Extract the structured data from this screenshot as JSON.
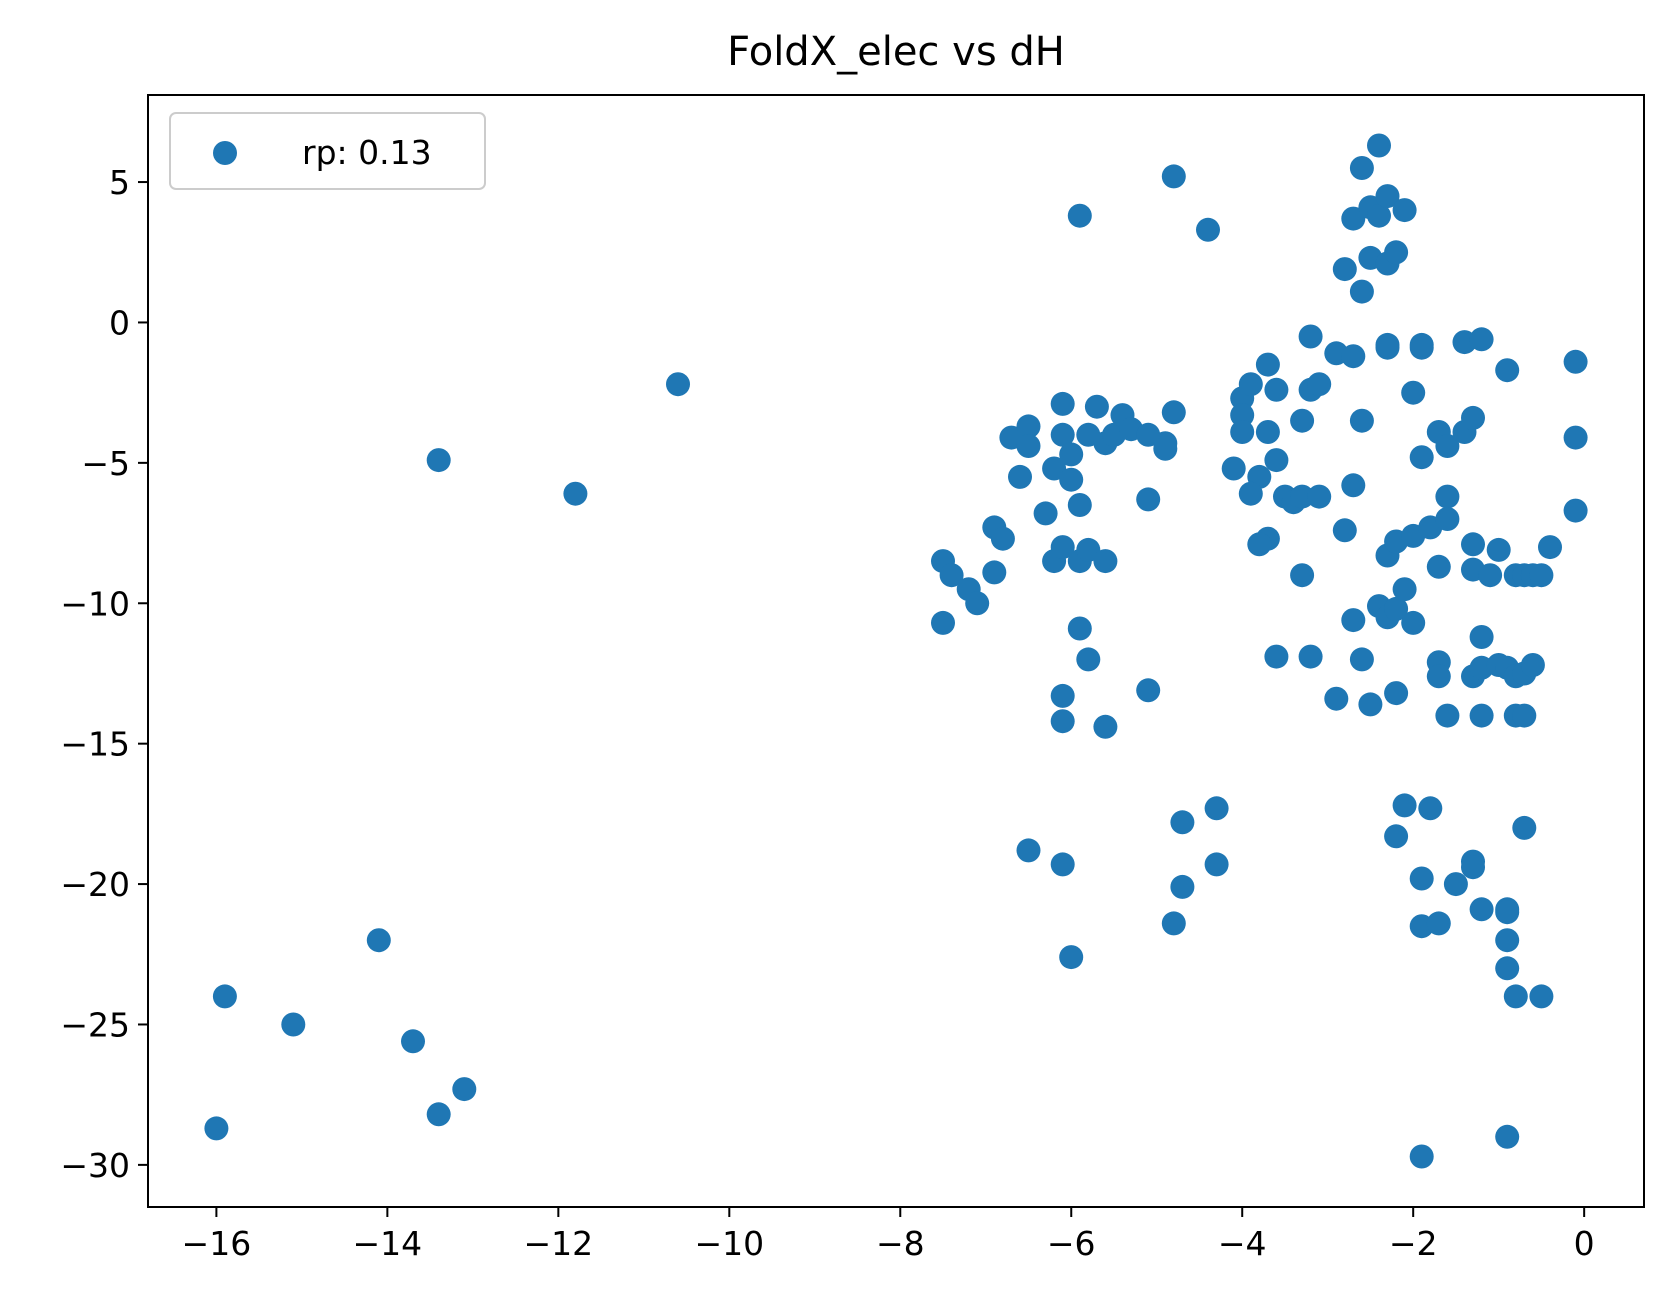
{
  "chart_data": {
    "type": "scatter",
    "title": "FoldX_elec vs dH",
    "xlabel": "",
    "ylabel": "",
    "xlim": [
      -16.8,
      0.7
    ],
    "ylim": [
      -31.5,
      8.1
    ],
    "xticks": [
      -16,
      -14,
      -12,
      -10,
      -8,
      -6,
      -4,
      -2,
      0
    ],
    "yticks": [
      5,
      0,
      -5,
      -10,
      -15,
      -20,
      -25,
      -30
    ],
    "grid": false,
    "legend": {
      "placement": "top-left"
    },
    "series": [
      {
        "name": "rp: 0.13",
        "color": "#1f77b4",
        "points": [
          [
            -16.0,
            -28.7
          ],
          [
            -15.9,
            -24.0
          ],
          [
            -15.1,
            -25.0
          ],
          [
            -14.1,
            -22.0
          ],
          [
            -13.7,
            -25.6
          ],
          [
            -13.4,
            -28.2
          ],
          [
            -13.1,
            -27.3
          ],
          [
            -13.4,
            -4.9
          ],
          [
            -11.8,
            -6.1
          ],
          [
            -10.6,
            -2.2
          ],
          [
            -7.5,
            -8.5
          ],
          [
            -7.4,
            -9.0
          ],
          [
            -7.2,
            -9.5
          ],
          [
            -7.1,
            -10.0
          ],
          [
            -7.5,
            -10.7
          ],
          [
            -6.9,
            -7.3
          ],
          [
            -6.8,
            -7.7
          ],
          [
            -6.9,
            -8.9
          ],
          [
            -6.7,
            -4.1
          ],
          [
            -6.5,
            -3.7
          ],
          [
            -6.5,
            -4.4
          ],
          [
            -6.6,
            -5.5
          ],
          [
            -6.3,
            -6.8
          ],
          [
            -6.5,
            -18.8
          ],
          [
            -6.1,
            -19.3
          ],
          [
            -6.0,
            -22.6
          ],
          [
            -6.2,
            -5.2
          ],
          [
            -6.0,
            -5.6
          ],
          [
            -6.1,
            -2.9
          ],
          [
            -6.1,
            -4.0
          ],
          [
            -6.0,
            -4.7
          ],
          [
            -5.9,
            -6.5
          ],
          [
            -6.2,
            -8.5
          ],
          [
            -6.1,
            -8.0
          ],
          [
            -5.9,
            -8.5
          ],
          [
            -5.8,
            -8.1
          ],
          [
            -5.6,
            -8.5
          ],
          [
            -5.9,
            -10.9
          ],
          [
            -5.8,
            -12.0
          ],
          [
            -6.1,
            -13.3
          ],
          [
            -6.1,
            -14.2
          ],
          [
            -5.6,
            -14.4
          ],
          [
            -5.9,
            3.8
          ],
          [
            -5.8,
            -4.0
          ],
          [
            -5.7,
            -3.0
          ],
          [
            -5.6,
            -4.3
          ],
          [
            -5.5,
            -4.0
          ],
          [
            -5.4,
            -3.3
          ],
          [
            -5.3,
            -3.8
          ],
          [
            -5.1,
            -4.0
          ],
          [
            -5.1,
            -6.3
          ],
          [
            -4.9,
            -4.3
          ],
          [
            -4.9,
            -4.5
          ],
          [
            -4.8,
            -3.2
          ],
          [
            -5.1,
            -13.1
          ],
          [
            -4.8,
            5.2
          ],
          [
            -4.4,
            3.3
          ],
          [
            -4.7,
            -17.8
          ],
          [
            -4.3,
            -17.3
          ],
          [
            -4.7,
            -20.1
          ],
          [
            -4.3,
            -19.3
          ],
          [
            -4.8,
            -21.4
          ],
          [
            -4.1,
            -5.2
          ],
          [
            -4.0,
            -2.7
          ],
          [
            -3.9,
            -2.2
          ],
          [
            -3.8,
            -5.5
          ],
          [
            -4.0,
            -3.3
          ],
          [
            -4.0,
            -3.9
          ],
          [
            -3.9,
            -6.1
          ],
          [
            -3.7,
            -3.9
          ],
          [
            -3.7,
            -1.5
          ],
          [
            -3.6,
            -2.4
          ],
          [
            -3.5,
            -6.2
          ],
          [
            -3.4,
            -6.4
          ],
          [
            -3.3,
            -3.5
          ],
          [
            -3.3,
            -6.2
          ],
          [
            -3.2,
            -2.4
          ],
          [
            -3.1,
            -2.2
          ],
          [
            -3.1,
            -6.2
          ],
          [
            -3.2,
            -0.5
          ],
          [
            -3.6,
            -4.9
          ],
          [
            -3.7,
            -7.7
          ],
          [
            -3.8,
            -7.9
          ],
          [
            -3.6,
            -11.9
          ],
          [
            -3.2,
            -11.9
          ],
          [
            -3.3,
            -9.0
          ],
          [
            -2.9,
            -1.1
          ],
          [
            -2.7,
            -1.2
          ],
          [
            -2.8,
            1.9
          ],
          [
            -2.7,
            3.7
          ],
          [
            -2.7,
            -5.8
          ],
          [
            -2.8,
            -7.4
          ],
          [
            -2.7,
            -10.6
          ],
          [
            -2.6,
            -12.0
          ],
          [
            -2.9,
            -13.4
          ],
          [
            -2.6,
            5.5
          ],
          [
            -2.5,
            4.1
          ],
          [
            -2.4,
            6.3
          ],
          [
            -2.4,
            3.8
          ],
          [
            -2.3,
            4.5
          ],
          [
            -2.1,
            4.0
          ],
          [
            -2.5,
            2.3
          ],
          [
            -2.3,
            2.1
          ],
          [
            -2.2,
            2.5
          ],
          [
            -2.6,
            1.1
          ],
          [
            -2.3,
            -0.8
          ],
          [
            -2.3,
            -0.9
          ],
          [
            -2.6,
            -3.5
          ],
          [
            -2.0,
            -2.5
          ],
          [
            -1.9,
            -0.9
          ],
          [
            -1.9,
            -0.8
          ],
          [
            -2.4,
            -10.1
          ],
          [
            -2.3,
            -10.5
          ],
          [
            -2.2,
            -10.2
          ],
          [
            -2.1,
            -9.5
          ],
          [
            -2.0,
            -10.7
          ],
          [
            -2.2,
            -13.2
          ],
          [
            -2.5,
            -13.6
          ],
          [
            -2.3,
            -8.3
          ],
          [
            -2.2,
            -7.8
          ],
          [
            -2.0,
            -7.6
          ],
          [
            -1.8,
            -7.3
          ],
          [
            -1.9,
            -4.8
          ],
          [
            -1.7,
            -3.9
          ],
          [
            -1.6,
            -4.4
          ],
          [
            -1.6,
            -6.2
          ],
          [
            -1.6,
            -7.0
          ],
          [
            -1.4,
            -3.9
          ],
          [
            -1.3,
            -3.4
          ],
          [
            -1.4,
            -0.7
          ],
          [
            -1.2,
            -0.6
          ],
          [
            -0.9,
            -1.7
          ],
          [
            -1.7,
            -8.7
          ],
          [
            -1.3,
            -7.9
          ],
          [
            -1.3,
            -8.8
          ],
          [
            -1.1,
            -9.0
          ],
          [
            -1.0,
            -8.1
          ],
          [
            -0.8,
            -9.0
          ],
          [
            -0.7,
            -9.0
          ],
          [
            -0.6,
            -9.0
          ],
          [
            -0.5,
            -9.0
          ],
          [
            -0.4,
            -8.0
          ],
          [
            -1.7,
            -12.1
          ],
          [
            -1.7,
            -12.6
          ],
          [
            -1.6,
            -14.0
          ],
          [
            -1.3,
            -12.6
          ],
          [
            -1.2,
            -11.2
          ],
          [
            -1.2,
            -12.3
          ],
          [
            -1.0,
            -12.2
          ],
          [
            -0.9,
            -12.3
          ],
          [
            -0.8,
            -12.6
          ],
          [
            -0.7,
            -12.5
          ],
          [
            -0.6,
            -12.2
          ],
          [
            -0.8,
            -14.0
          ],
          [
            -0.7,
            -14.0
          ],
          [
            -1.2,
            -14.0
          ],
          [
            -2.1,
            -17.2
          ],
          [
            -2.2,
            -18.3
          ],
          [
            -1.8,
            -17.3
          ],
          [
            -1.9,
            -19.8
          ],
          [
            -1.5,
            -20.0
          ],
          [
            -1.3,
            -19.2
          ],
          [
            -1.3,
            -19.4
          ],
          [
            -1.2,
            -20.9
          ],
          [
            -1.9,
            -21.5
          ],
          [
            -1.7,
            -21.4
          ],
          [
            -0.9,
            -20.9
          ],
          [
            -0.9,
            -21.0
          ],
          [
            -0.9,
            -22.0
          ],
          [
            -0.9,
            -23.0
          ],
          [
            -0.8,
            -24.0
          ],
          [
            -0.5,
            -24.0
          ],
          [
            -0.7,
            -18.0
          ],
          [
            -1.9,
            -29.7
          ],
          [
            -0.9,
            -29.0
          ],
          [
            -0.1,
            -1.4
          ],
          [
            -0.1,
            -4.1
          ],
          [
            -0.1,
            -6.7
          ]
        ]
      }
    ]
  }
}
